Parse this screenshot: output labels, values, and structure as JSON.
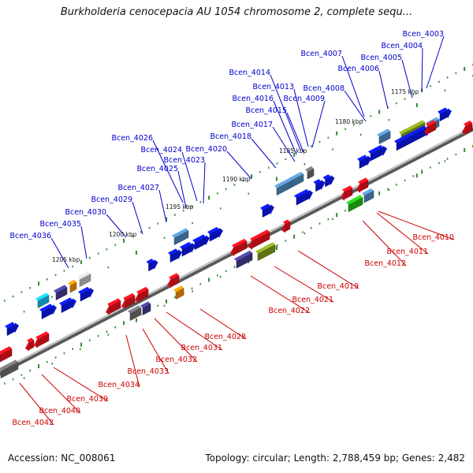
{
  "title": "Burkholderia cenocepacia AU 1054 chromosome 2, complete sequ...",
  "footer": {
    "accession": "Accession: NC_008061",
    "topology": "Topology: circular; Length: 2,788,459 bp; Genes: 2,482"
  },
  "colors": {
    "forward_label": "#0000cc",
    "reverse_label": "#cc0000",
    "backbone": "#8c8c8c",
    "dots": "#2e8b2e",
    "blue": "#0a17e6",
    "red": "#e8101c",
    "steelblue": "#4f86b8",
    "olive": "#7d9a1f",
    "darkslate": "#433b8f",
    "gray": "#6b6b6b",
    "lightgray": "#bdbdbd",
    "orange": "#f08a00",
    "cyan": "#15b6e6",
    "green": "#23b516"
  },
  "kbp_ticks": [
    "1175 kbp",
    "1180 kbp",
    "1185 kbp",
    "1190 kbp",
    "1195 kbp",
    "1200 kbp",
    "1205 kbp"
  ],
  "forward_genes": [
    "Bcen_4003",
    "Bcen_4004",
    "Bcen_4005",
    "Bcen_4006",
    "Bcen_4007",
    "Bcen_4008",
    "Bcen_4009",
    "Bcen_4013",
    "Bcen_4014",
    "Bcen_4015",
    "Bcen_4016",
    "Bcen_4017",
    "Bcen_4018",
    "Bcen_4020",
    "Bcen_4023",
    "Bcen_4024",
    "Bcen_4025",
    "Bcen_4026",
    "Bcen_4027",
    "Bcen_4029",
    "Bcen_4030",
    "Bcen_4035",
    "Bcen_4036"
  ],
  "reverse_genes": [
    "Bcen_4010",
    "Bcen_4011",
    "Bcen_4012",
    "Bcen_4019",
    "Bcen_4021",
    "Bcen_4022",
    "Bcen_4028",
    "Bcen_4031",
    "Bcen_4032",
    "Bcen_4033",
    "Bcen_4034",
    "Bcen_4039",
    "Bcen_4040",
    "Bcen_4042"
  ]
}
